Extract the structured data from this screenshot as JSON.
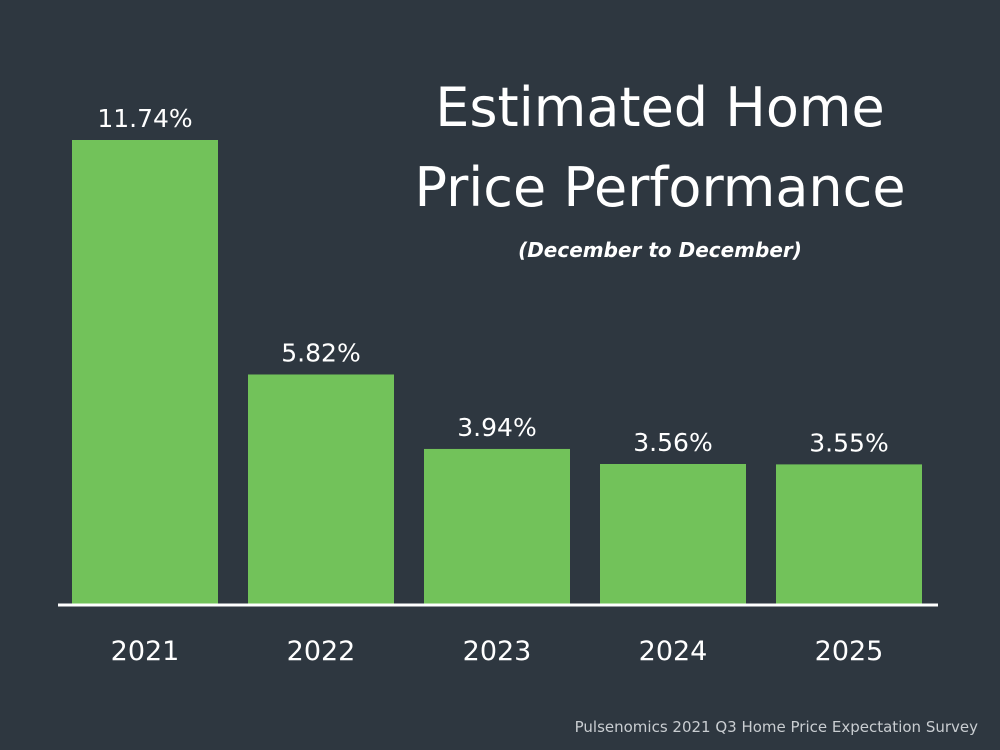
{
  "title_lines": [
    "Estimated Home",
    "Price Performance"
  ],
  "subtitle": "(December to December)",
  "source": "Pulsenomics 2021 Q3 Home Price Expectation Survey",
  "colors": {
    "background": "#2e3740",
    "bar": "#72c25a",
    "text": "#ffffff",
    "axis": "#ffffff"
  },
  "chart_data": {
    "type": "bar",
    "title": "Estimated Home Price Performance",
    "subtitle": "(December to December)",
    "categories": [
      "2021",
      "2022",
      "2023",
      "2024",
      "2025"
    ],
    "values": [
      11.74,
      5.82,
      3.94,
      3.56,
      3.55
    ],
    "data_labels": [
      "11.74%",
      "5.82%",
      "3.94%",
      "3.56%",
      "3.55%"
    ],
    "unit": "%",
    "xlabel": "",
    "ylabel": "",
    "ylim": [
      0,
      11.74
    ],
    "grid": false,
    "legend": "none"
  }
}
